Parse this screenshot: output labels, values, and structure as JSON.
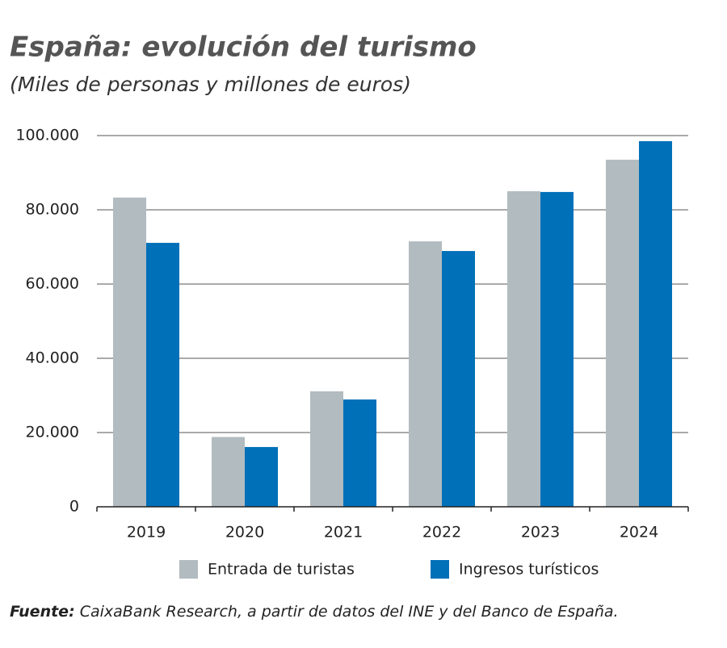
{
  "chart_data": {
    "type": "bar",
    "title": "España: evolución del turismo",
    "subtitle": "(Miles de personas y millones de euros)",
    "categories": [
      "2019",
      "2020",
      "2021",
      "2022",
      "2023",
      "2024"
    ],
    "series": [
      {
        "name": "Entrada de turistas",
        "color": "#b2bbc0",
        "values": [
          83.3,
          18.8,
          31.1,
          71.5,
          85.0,
          93.5
        ]
      },
      {
        "name": "Ingresos turísticos",
        "color": "#0070b8",
        "values": [
          71.1,
          16.1,
          28.9,
          68.9,
          84.8,
          98.5
        ]
      }
    ],
    "ylim": [
      0,
      100
    ],
    "yticks": [
      0,
      {
        "value": 20,
        "label": "20.000"
      },
      {
        "value": 40,
        "label": "40.000"
      },
      {
        "value": 60,
        "label": "60.000"
      },
      {
        "value": 80,
        "label": "80.000"
      },
      {
        "value": 100,
        "label": "100.000"
      }
    ],
    "grid": true,
    "source_label": "Fuente:",
    "source_text": "CaixaBank Research, a partir de datos del INE y del Banco de España."
  }
}
